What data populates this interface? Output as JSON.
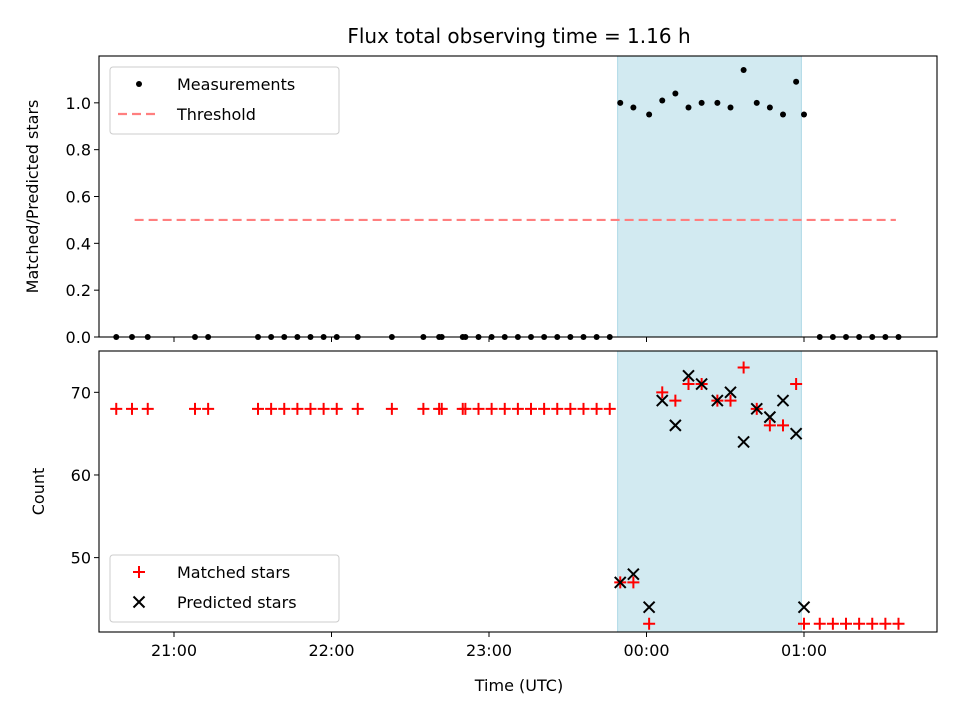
{
  "chart_data": {
    "title": "Flux total observing time = 1.16 h",
    "xlabel": "Time (UTC)",
    "x_ticks": [
      "21:00",
      "22:00",
      "23:00",
      "00:00",
      "01:00"
    ],
    "highlight_color": "#add8e6",
    "highlight_span": [
      "23:49",
      "00:59"
    ],
    "panels": [
      {
        "type": "scatter",
        "ylabel": "Matched/Predicted stars",
        "ylim": [
          0,
          1.2
        ],
        "y_ticks": [
          "0.0",
          "0.2",
          "0.4",
          "0.6",
          "0.8",
          "1.0"
        ],
        "legend": "top-left",
        "series": [
          {
            "name": "Measurements",
            "marker": "dot",
            "color": "#000000",
            "points": [
              [
                "20:38",
                0
              ],
              [
                "20:44",
                0
              ],
              [
                "20:50",
                0
              ],
              [
                "21:08",
                0
              ],
              [
                "21:13",
                0
              ],
              [
                "21:32",
                0
              ],
              [
                "21:37",
                0
              ],
              [
                "21:42",
                0
              ],
              [
                "21:47",
                0
              ],
              [
                "21:52",
                0
              ],
              [
                "21:57",
                0
              ],
              [
                "22:02",
                0
              ],
              [
                "22:10",
                0
              ],
              [
                "22:23",
                0
              ],
              [
                "22:35",
                0
              ],
              [
                "22:41",
                0
              ],
              [
                "22:42",
                0
              ],
              [
                "22:50",
                0
              ],
              [
                "22:51",
                0
              ],
              [
                "22:56",
                0
              ],
              [
                "23:01",
                0
              ],
              [
                "23:06",
                0
              ],
              [
                "23:11",
                0
              ],
              [
                "23:16",
                0
              ],
              [
                "23:21",
                0
              ],
              [
                "23:26",
                0
              ],
              [
                "23:31",
                0
              ],
              [
                "23:36",
                0
              ],
              [
                "23:41",
                0
              ],
              [
                "23:46",
                0
              ],
              [
                "23:50",
                1.0
              ],
              [
                "23:55",
                0.98
              ],
              [
                "24:01",
                0.95
              ],
              [
                "24:06",
                1.01
              ],
              [
                "24:11",
                1.04
              ],
              [
                "24:16",
                0.98
              ],
              [
                "24:21",
                1.0
              ],
              [
                "24:27",
                1.0
              ],
              [
                "24:32",
                0.98
              ],
              [
                "24:37",
                1.14
              ],
              [
                "24:42",
                1.0
              ],
              [
                "24:47",
                0.98
              ],
              [
                "24:52",
                0.95
              ],
              [
                "24:57",
                1.09
              ],
              [
                "25:00",
                0.95
              ],
              [
                "25:06",
                0
              ],
              [
                "25:11",
                0
              ],
              [
                "25:16",
                0
              ],
              [
                "25:21",
                0
              ],
              [
                "25:26",
                0
              ],
              [
                "25:31",
                0
              ],
              [
                "25:36",
                0
              ]
            ]
          },
          {
            "name": "Threshold",
            "marker": "dashed-line",
            "color": "#ff7f7f",
            "points": [
              [
                "20:45",
                0.5
              ],
              [
                "25:35",
                0.5
              ]
            ]
          }
        ]
      },
      {
        "type": "scatter",
        "ylabel": "Count",
        "ylim": [
          41,
          75
        ],
        "y_ticks": [
          "50",
          "60",
          "70"
        ],
        "y_tick_values": [
          50,
          60,
          70
        ],
        "legend": "bottom-left",
        "series": [
          {
            "name": "Matched stars",
            "marker": "plus",
            "color": "#ff0000",
            "points": [
              [
                "20:38",
                68
              ],
              [
                "20:44",
                68
              ],
              [
                "20:50",
                68
              ],
              [
                "21:08",
                68
              ],
              [
                "21:13",
                68
              ],
              [
                "21:32",
                68
              ],
              [
                "21:37",
                68
              ],
              [
                "21:42",
                68
              ],
              [
                "21:47",
                68
              ],
              [
                "21:52",
                68
              ],
              [
                "21:57",
                68
              ],
              [
                "22:02",
                68
              ],
              [
                "22:10",
                68
              ],
              [
                "22:23",
                68
              ],
              [
                "22:35",
                68
              ],
              [
                "22:41",
                68
              ],
              [
                "22:42",
                68
              ],
              [
                "22:50",
                68
              ],
              [
                "22:51",
                68
              ],
              [
                "22:56",
                68
              ],
              [
                "23:01",
                68
              ],
              [
                "23:06",
                68
              ],
              [
                "23:11",
                68
              ],
              [
                "23:16",
                68
              ],
              [
                "23:21",
                68
              ],
              [
                "23:26",
                68
              ],
              [
                "23:31",
                68
              ],
              [
                "23:36",
                68
              ],
              [
                "23:41",
                68
              ],
              [
                "23:46",
                68
              ],
              [
                "23:50",
                47
              ],
              [
                "23:55",
                47
              ],
              [
                "24:01",
                42
              ],
              [
                "24:06",
                70
              ],
              [
                "24:11",
                69
              ],
              [
                "24:16",
                71
              ],
              [
                "24:21",
                71
              ],
              [
                "24:27",
                69
              ],
              [
                "24:32",
                69
              ],
              [
                "24:37",
                73
              ],
              [
                "24:42",
                68
              ],
              [
                "24:47",
                66
              ],
              [
                "24:52",
                66
              ],
              [
                "24:57",
                71
              ],
              [
                "25:00",
                42
              ],
              [
                "25:06",
                42
              ],
              [
                "25:11",
                42
              ],
              [
                "25:16",
                42
              ],
              [
                "25:21",
                42
              ],
              [
                "25:26",
                42
              ],
              [
                "25:31",
                42
              ],
              [
                "25:36",
                42
              ]
            ]
          },
          {
            "name": "Predicted stars",
            "marker": "x",
            "color": "#000000",
            "points": [
              [
                "23:50",
                47
              ],
              [
                "23:55",
                48
              ],
              [
                "24:01",
                44
              ],
              [
                "24:06",
                69
              ],
              [
                "24:11",
                66
              ],
              [
                "24:16",
                72
              ],
              [
                "24:21",
                71
              ],
              [
                "24:27",
                69
              ],
              [
                "24:32",
                70
              ],
              [
                "24:37",
                64
              ],
              [
                "24:42",
                68
              ],
              [
                "24:47",
                67
              ],
              [
                "24:52",
                69
              ],
              [
                "24:57",
                65
              ],
              [
                "25:00",
                44
              ]
            ]
          }
        ]
      }
    ]
  }
}
